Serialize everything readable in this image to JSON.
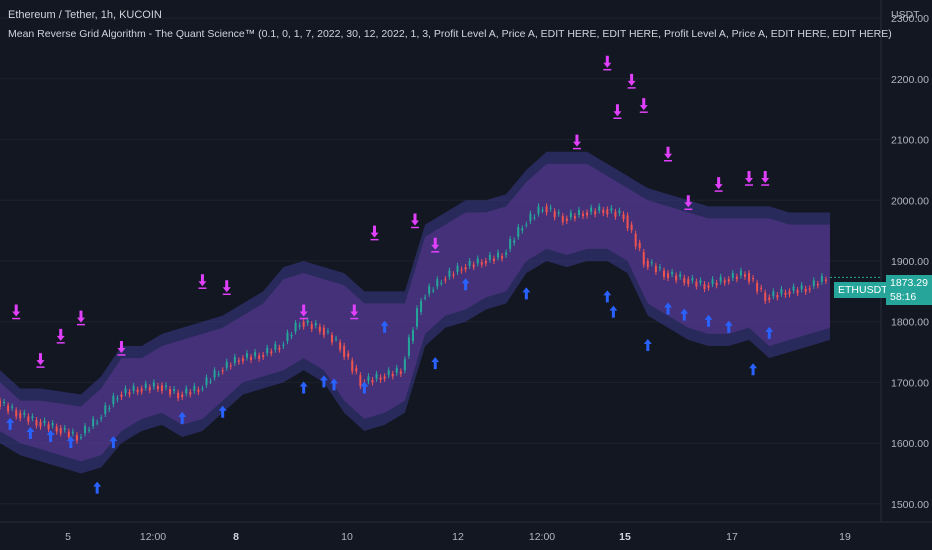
{
  "header": {
    "title": "Ethereum / Tether, 1h, KUCOIN",
    "indicator": "Mean Reverse Grid Algorithm - The Quant Science™ (0.1, 0, 1, 7, 2022, 30, 12, 2022, 1, 3, Profit Level A, Price A, EDIT HERE, EDIT HERE, Profit Level A, Price A, EDIT HERE, EDIT HERE)"
  },
  "price_axis": {
    "unit": "USDT",
    "ticks": [
      "2300.00",
      "2200.00",
      "2100.00",
      "2000.00",
      "1900.00",
      "1800.00",
      "1700.00",
      "1600.00",
      "1500.00"
    ]
  },
  "time_axis": {
    "ticks": [
      {
        "label": "5",
        "bold": false
      },
      {
        "label": "12:00",
        "bold": false
      },
      {
        "label": "8",
        "bold": true
      },
      {
        "label": "10",
        "bold": false
      },
      {
        "label": "12",
        "bold": false
      },
      {
        "label": "12:00",
        "bold": false
      },
      {
        "label": "15",
        "bold": true
      },
      {
        "label": "17",
        "bold": false
      },
      {
        "label": "19",
        "bold": false
      }
    ]
  },
  "last_price": {
    "symbol": "ETHUSDT",
    "price": "1873.29",
    "countdown": "58:16"
  },
  "colors": {
    "background": "#131722",
    "up": "#26a69a",
    "down": "#ef5350",
    "buy_arrow": "#2962ff",
    "sell_arrow": "#e040fb",
    "band": "#3d3a8c"
  },
  "chart_data": {
    "type": "line",
    "symbol": "ETHUSDT",
    "ylim": [
      1470,
      2330
    ],
    "x_ticks": [
      "5",
      "12:00",
      "8",
      "10",
      "12",
      "12:00",
      "15",
      "17",
      "19"
    ],
    "y_ticks": [
      1500,
      1600,
      1700,
      1800,
      1900,
      2000,
      2100,
      2200,
      2300
    ],
    "x_index": [
      0,
      10,
      20,
      30,
      40,
      50,
      60,
      70,
      80,
      90,
      100,
      110,
      120,
      130,
      140,
      150,
      160,
      170,
      180,
      190,
      200,
      210,
      220,
      230,
      240,
      250,
      260,
      270,
      280,
      290,
      300,
      310,
      320,
      330,
      340,
      350,
      360,
      370,
      380,
      390,
      400,
      410
    ],
    "close": [
      1670,
      1650,
      1635,
      1625,
      1610,
      1640,
      1680,
      1690,
      1695,
      1680,
      1690,
      1720,
      1740,
      1745,
      1760,
      1800,
      1790,
      1760,
      1700,
      1710,
      1720,
      1840,
      1870,
      1890,
      1900,
      1910,
      1960,
      1990,
      1970,
      1980,
      1985,
      1975,
      1900,
      1880,
      1870,
      1860,
      1870,
      1880,
      1840,
      1850,
      1855,
      1873
    ],
    "band_upper": [
      1720,
      1690,
      1690,
      1685,
      1680,
      1710,
      1760,
      1760,
      1780,
      1790,
      1800,
      1810,
      1830,
      1850,
      1890,
      1900,
      1890,
      1880,
      1850,
      1850,
      1850,
      1960,
      1980,
      2000,
      2000,
      2010,
      2050,
      2080,
      2080,
      2080,
      2060,
      2040,
      2020,
      2010,
      2000,
      1990,
      1990,
      1990,
      1990,
      1980,
      1980,
      1980
    ],
    "band_lower": [
      1600,
      1580,
      1570,
      1560,
      1550,
      1560,
      1600,
      1620,
      1630,
      1610,
      1620,
      1650,
      1680,
      1690,
      1700,
      1720,
      1700,
      1650,
      1620,
      1630,
      1650,
      1760,
      1790,
      1800,
      1820,
      1830,
      1880,
      1900,
      1890,
      1900,
      1900,
      1880,
      1810,
      1790,
      1770,
      1760,
      1760,
      1770,
      1740,
      1750,
      1760,
      1770
    ],
    "buy_signal_x": [
      5,
      15,
      25,
      35,
      48,
      56,
      90,
      110,
      150,
      160,
      165,
      180,
      190,
      215,
      230,
      260,
      300,
      303,
      320,
      330,
      338,
      350,
      360,
      372,
      380
    ],
    "buy_signal_y": [
      1630,
      1615,
      1610,
      1600,
      1525,
      1600,
      1640,
      1650,
      1690,
      1700,
      1695,
      1690,
      1790,
      1730,
      1860,
      1845,
      1840,
      1815,
      1760,
      1820,
      1810,
      1800,
      1790,
      1720,
      1780
    ],
    "sell_signal_x": [
      8,
      20,
      30,
      40,
      60,
      100,
      112,
      150,
      175,
      185,
      205,
      215,
      285,
      300,
      305,
      312,
      318,
      330,
      340,
      355,
      370,
      378
    ],
    "sell_signal_y": [
      1820,
      1740,
      1780,
      1810,
      1760,
      1870,
      1860,
      1820,
      1820,
      1950,
      1970,
      1930,
      2100,
      2230,
      2150,
      2200,
      2160,
      2080,
      2000,
      2030,
      2040,
      2040
    ]
  }
}
